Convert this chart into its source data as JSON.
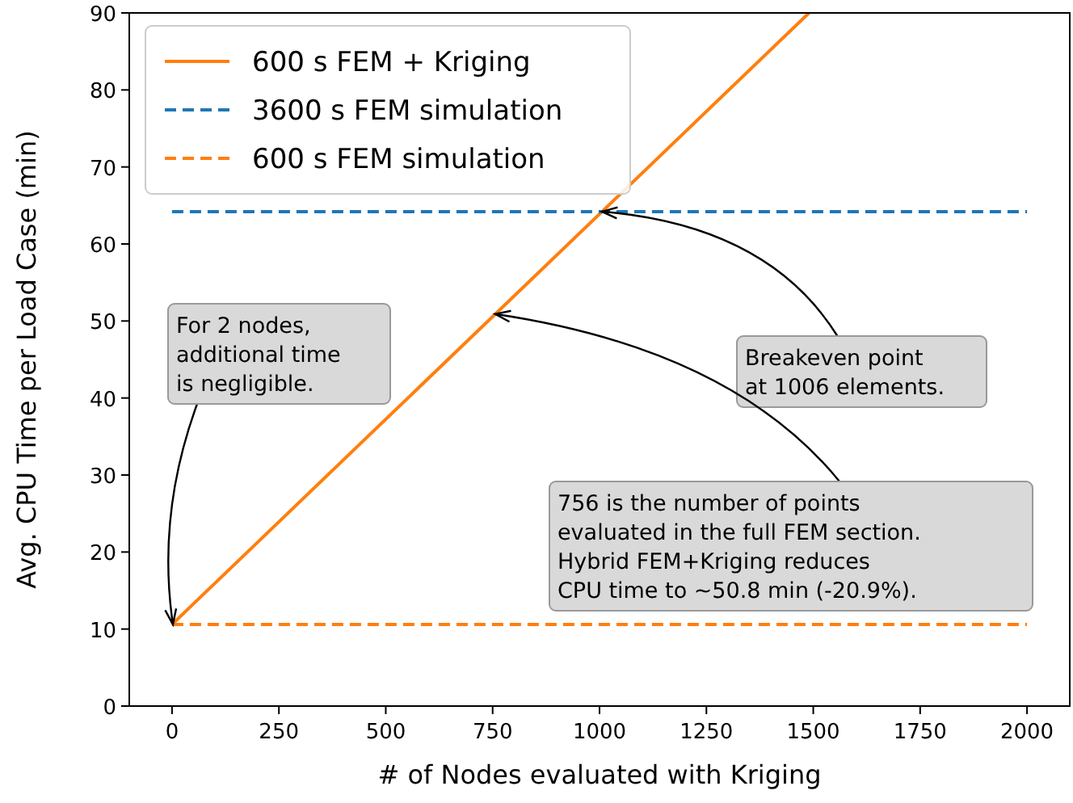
{
  "chart_data": {
    "type": "line",
    "xlabel": "# of Nodes evaluated with Kriging",
    "ylabel": "Avg. CPU Time per Load Case (min)",
    "xlim": [
      -100,
      2100
    ],
    "ylim": [
      0,
      90
    ],
    "xticks": [
      0,
      250,
      500,
      750,
      1000,
      1250,
      1500,
      1750,
      2000
    ],
    "yticks": [
      0,
      10,
      20,
      30,
      40,
      50,
      60,
      70,
      80,
      90
    ],
    "series": [
      {
        "name": "600 s FEM + Kriging",
        "color": "#ff7f0e",
        "x": [
          0,
          1490
        ],
        "values": [
          10.6,
          90
        ],
        "line_style": "solid"
      },
      {
        "name": "3600 s FEM simulation",
        "color": "#1f77b4",
        "x": [
          0,
          2000
        ],
        "values": [
          64.2,
          64.2
        ],
        "line_style": "dashed"
      },
      {
        "name": "600 s FEM simulation",
        "color": "#ff7f0e",
        "x": [
          0,
          2000
        ],
        "values": [
          10.6,
          10.6
        ],
        "line_style": "dashed"
      }
    ],
    "annotations": [
      {
        "text": "For 2 nodes,\nadditional time\nis negligible.",
        "x": 2,
        "y": 10.6
      },
      {
        "text": "Breakeven point\nat 1006 elements.",
        "x": 1006,
        "y": 64.2
      },
      {
        "text": "756 is the number of points\nevaluated in the full FEM section.\nHybrid FEM+Kriging reduces\nCPU time to ~50.8 min (-20.9%).",
        "x": 756,
        "y": 50.9
      }
    ],
    "legend": "top left",
    "grid": false
  }
}
